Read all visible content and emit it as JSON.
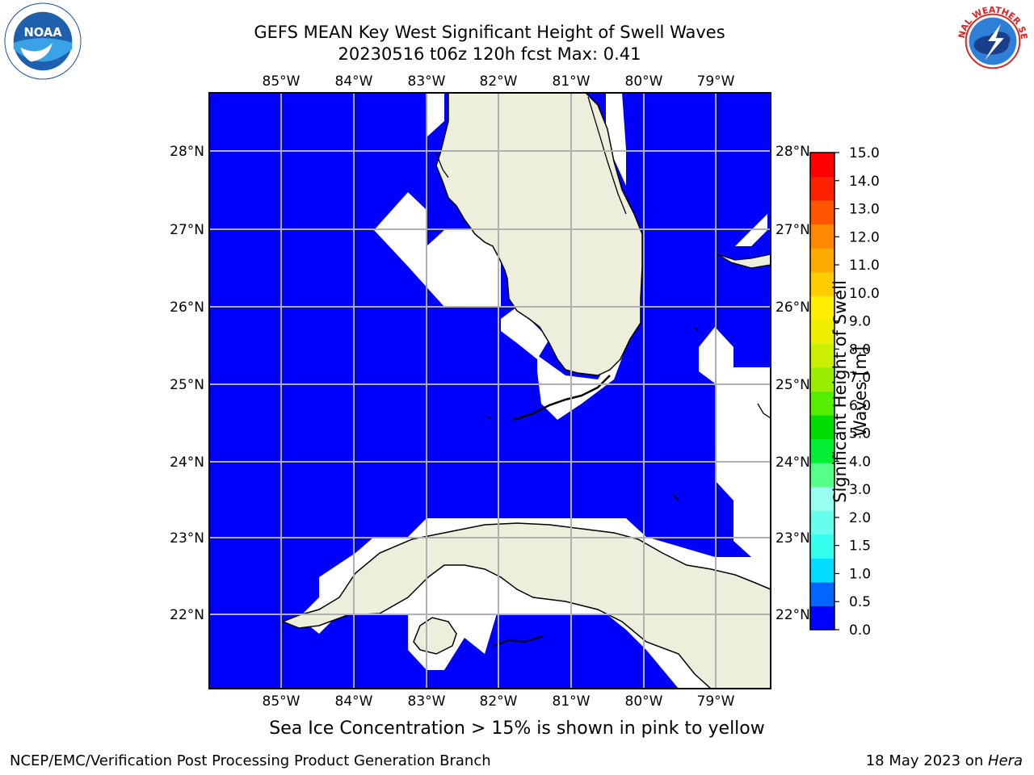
{
  "title": {
    "line1": "GEFS MEAN Key West Significant Height of Swell Waves",
    "line2": "20230516 t06z 120h fcst   Max: 0.41"
  },
  "map": {
    "lon_labels": [
      "85°W",
      "84°W",
      "83°W",
      "82°W",
      "81°W",
      "80°W",
      "79°W"
    ],
    "lat_labels": [
      "28°N",
      "27°N",
      "26°N",
      "25°N",
      "24°N",
      "23°N",
      "22°N"
    ],
    "ocean_color": "#0000ff",
    "land_color": "#eeeedd",
    "grid_color": "#b0b0b0"
  },
  "colorbar": {
    "title": "Significant Height of Swell Waves [m]",
    "ticks": [
      "15.0",
      "14.0",
      "13.0",
      "12.0",
      "11.0",
      "10.0",
      "9.0",
      "8.0",
      "7.0",
      "6.0",
      "5.0",
      "4.0",
      "3.0",
      "2.0",
      "1.5",
      "1.0",
      "0.5",
      "0.0"
    ],
    "colors_bottom_to_top": [
      "#0000ff",
      "#0066ff",
      "#00ddff",
      "#33ffee",
      "#66ffee",
      "#99ffee",
      "#55ff88",
      "#00ee33",
      "#00dd00",
      "#55ee00",
      "#99ee00",
      "#ccee00",
      "#eeee00",
      "#ffee00",
      "#ffcc00",
      "#ffaa00",
      "#ff8800",
      "#ff5500",
      "#ff2200",
      "#ff0000"
    ]
  },
  "note": "Sea Ice Concentration > 15% is shown in pink to yellow",
  "footer": {
    "left": "NCEP/EMC/Verification Post Processing Product Generation Branch",
    "date": "18 May 2023 on ",
    "host": "Hera"
  },
  "logos": {
    "noaa_text": "NOAA",
    "nws_text": "NATIONAL WEATHER SERVICE"
  }
}
